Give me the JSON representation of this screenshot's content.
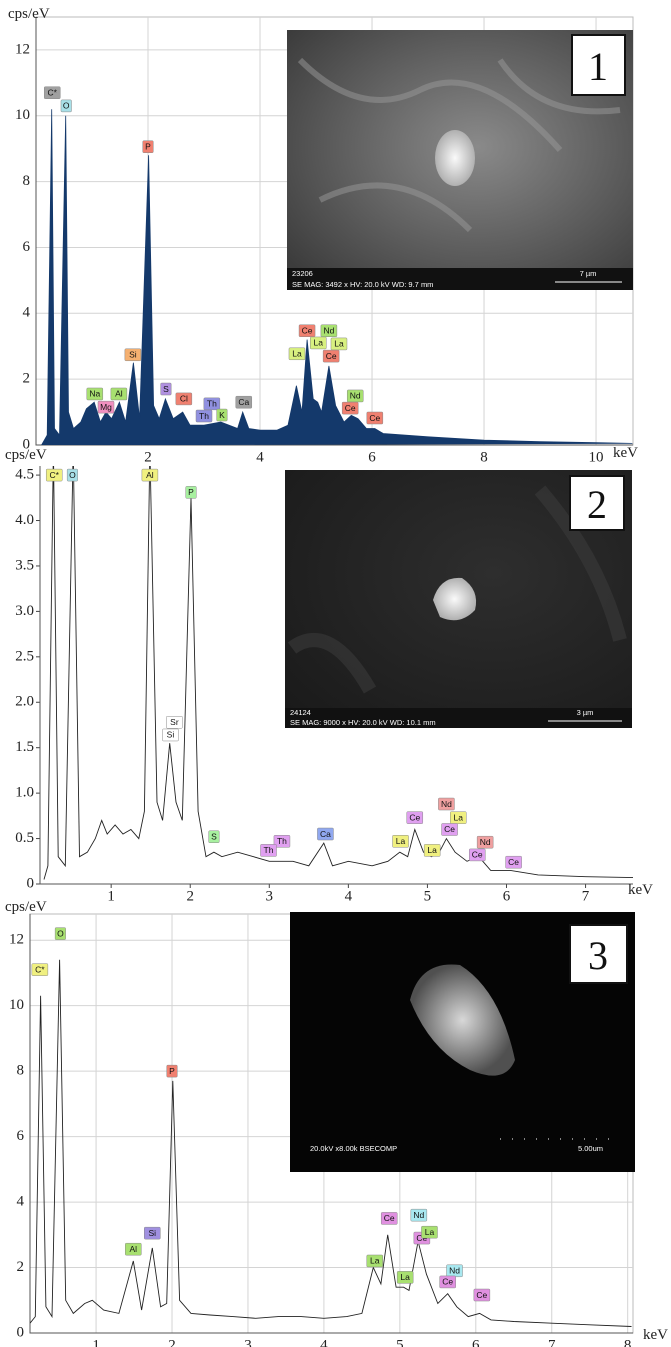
{
  "chart_data": [
    {
      "type": "area",
      "x_label": "keV",
      "y_label": "cps/eV",
      "color": "#14396b",
      "grid": true,
      "xlim": [
        0,
        10.66
      ],
      "ylim": [
        0,
        13
      ],
      "xticks": [
        2,
        4,
        6,
        8,
        10
      ],
      "yticks": [
        0,
        2,
        4,
        6,
        8,
        10,
        12
      ],
      "x": [
        0.1,
        0.2,
        0.28,
        0.33,
        0.42,
        0.53,
        0.58,
        0.67,
        0.8,
        0.9,
        1.04,
        1.15,
        1.25,
        1.35,
        1.49,
        1.6,
        1.74,
        1.85,
        2.01,
        2.1,
        2.2,
        2.31,
        2.45,
        2.62,
        2.75,
        3.0,
        3.3,
        3.6,
        3.69,
        3.8,
        4.0,
        4.3,
        4.5,
        4.65,
        4.75,
        4.84,
        4.95,
        5.03,
        5.1,
        5.23,
        5.35,
        5.5,
        5.63,
        5.75,
        5.9,
        6.05,
        6.2,
        6.6,
        7.0,
        8.0,
        9.0,
        10.0,
        10.65
      ],
      "values": [
        0,
        0.3,
        10.2,
        0.5,
        0.3,
        10,
        1,
        0.5,
        0.7,
        1.1,
        1.3,
        0.7,
        1.0,
        0.8,
        1.3,
        0.7,
        2.5,
        0.8,
        8.8,
        1.2,
        0.8,
        1.4,
        0.8,
        1.0,
        0.6,
        0.6,
        0.7,
        0.5,
        1.0,
        0.5,
        0.45,
        0.45,
        0.6,
        1.8,
        1.0,
        3.2,
        1.4,
        1.3,
        1.0,
        2.4,
        1.2,
        0.7,
        0.9,
        0.8,
        0.5,
        0.5,
        0.35,
        0.3,
        0.25,
        0.15,
        0.1,
        0.07,
        0.05
      ],
      "annotations": [
        {
          "text": "C*",
          "x": 0.29,
          "y": 10.7,
          "color": "#a0a0a0"
        },
        {
          "text": "O",
          "x": 0.54,
          "y": 10.3,
          "color": "#a8e0e8"
        },
        {
          "text": "P",
          "x": 2.0,
          "y": 9.06,
          "color": "#f08070"
        },
        {
          "text": "Si",
          "x": 1.73,
          "y": 2.74,
          "color": "#f5b070"
        },
        {
          "text": "Na",
          "x": 1.05,
          "y": 1.55,
          "color": "#a8e070"
        },
        {
          "text": "Mg",
          "x": 1.25,
          "y": 1.15,
          "color": "#f090c0"
        },
        {
          "text": "Al",
          "x": 1.48,
          "y": 1.55,
          "color": "#a8e070"
        },
        {
          "text": "S",
          "x": 2.32,
          "y": 1.7,
          "color": "#b090e0"
        },
        {
          "text": "Cl",
          "x": 2.64,
          "y": 1.4,
          "color": "#f08070"
        },
        {
          "text": "Th",
          "x": 3.14,
          "y": 1.25,
          "color": "#9090e0"
        },
        {
          "text": "Th",
          "x": 3.0,
          "y": 0.88,
          "color": "#9090e0"
        },
        {
          "text": "K",
          "x": 3.32,
          "y": 0.91,
          "color": "#a8e070"
        },
        {
          "text": "Ca",
          "x": 3.71,
          "y": 1.3,
          "color": "#a0a0a0"
        },
        {
          "text": "La",
          "x": 4.66,
          "y": 2.77,
          "color": "#d8f080"
        },
        {
          "text": "Ce",
          "x": 4.84,
          "y": 3.47,
          "color": "#f08070"
        },
        {
          "text": "La",
          "x": 5.04,
          "y": 3.1,
          "color": "#d8f080"
        },
        {
          "text": "Nd",
          "x": 5.23,
          "y": 3.47,
          "color": "#a8e070"
        },
        {
          "text": "La",
          "x": 5.41,
          "y": 3.07,
          "color": "#d8f080"
        },
        {
          "text": "Ce",
          "x": 5.27,
          "y": 2.7,
          "color": "#f08070"
        },
        {
          "text": "Nd",
          "x": 5.7,
          "y": 1.49,
          "color": "#a8e070"
        },
        {
          "text": "Ce",
          "x": 5.61,
          "y": 1.12,
          "color": "#f08070"
        },
        {
          "text": "Ce",
          "x": 6.05,
          "y": 0.82,
          "color": "#f08070"
        }
      ],
      "inset": {
        "label": "1",
        "image_id": "23206",
        "caption": "SE  MAG: 3492 x  HV: 20.0 kV  WD: 9.7 mm",
        "scale": "7 µm"
      }
    },
    {
      "type": "line",
      "x_label": "keV",
      "y_label": "cps/eV",
      "color": "#222222",
      "grid": false,
      "xlim": [
        0.1,
        7.6
      ],
      "ylim": [
        0,
        4.6
      ],
      "xticks": [
        1,
        2,
        3,
        4,
        5,
        6,
        7
      ],
      "yticks": [
        0,
        0.5,
        {
          "value": 1,
          "label": "1.0"
        },
        1.5,
        {
          "value": 2,
          "label": "2.0"
        },
        2.5,
        {
          "value": 3,
          "label": "3.0"
        },
        3.5,
        {
          "value": 4,
          "label": "4.0"
        },
        4.5
      ],
      "x": [
        0.15,
        0.2,
        0.27,
        0.33,
        0.42,
        0.52,
        0.6,
        0.7,
        0.8,
        0.88,
        0.95,
        1.05,
        1.15,
        1.25,
        1.35,
        1.42,
        1.49,
        1.58,
        1.65,
        1.74,
        1.82,
        1.9,
        2.01,
        2.1,
        2.2,
        2.3,
        2.4,
        2.6,
        2.8,
        3.0,
        3.3,
        3.5,
        3.69,
        3.8,
        4.0,
        4.3,
        4.5,
        4.65,
        4.75,
        4.84,
        4.95,
        5.05,
        5.15,
        5.24,
        5.35,
        5.5,
        5.65,
        5.8,
        6.05,
        6.4,
        7.0,
        7.6
      ],
      "values": [
        0.05,
        0.2,
        4.8,
        0.3,
        0.2,
        4.8,
        0.3,
        0.35,
        0.5,
        0.7,
        0.55,
        0.65,
        0.55,
        0.6,
        0.5,
        0.8,
        4.8,
        0.9,
        0.7,
        1.55,
        0.9,
        0.7,
        4.25,
        0.8,
        0.3,
        0.35,
        0.3,
        0.35,
        0.3,
        0.25,
        0.25,
        0.2,
        0.45,
        0.2,
        0.25,
        0.2,
        0.25,
        0.35,
        0.3,
        0.6,
        0.35,
        0.3,
        0.35,
        0.5,
        0.35,
        0.25,
        0.3,
        0.15,
        0.15,
        0.1,
        0.08,
        0.07
      ],
      "annotations": [
        {
          "text": "C*",
          "x": 0.28,
          "y": 4.5,
          "color": "#f0f080"
        },
        {
          "text": "O",
          "x": 0.51,
          "y": 4.5,
          "color": "#a8e0e8"
        },
        {
          "text": "Al",
          "x": 1.49,
          "y": 4.5,
          "color": "#f0f080"
        },
        {
          "text": "P",
          "x": 2.01,
          "y": 4.31,
          "color": "#a8f0a0"
        },
        {
          "text": "Sr",
          "x": 1.8,
          "y": 1.78,
          "color": "#ffffff"
        },
        {
          "text": "Si",
          "x": 1.75,
          "y": 1.64,
          "color": "#ffffff"
        },
        {
          "text": "S",
          "x": 2.3,
          "y": 0.52,
          "color": "#a8f0a0"
        },
        {
          "text": "Th",
          "x": 3.16,
          "y": 0.47,
          "color": "#e0a0f0"
        },
        {
          "text": "Th",
          "x": 2.99,
          "y": 0.37,
          "color": "#e0a0f0"
        },
        {
          "text": "Ca",
          "x": 3.71,
          "y": 0.55,
          "color": "#90a8f0"
        },
        {
          "text": "La",
          "x": 4.66,
          "y": 0.47,
          "color": "#f0f080"
        },
        {
          "text": "Ce",
          "x": 4.84,
          "y": 0.73,
          "color": "#e0a0f0"
        },
        {
          "text": "La",
          "x": 5.06,
          "y": 0.37,
          "color": "#f0f080"
        },
        {
          "text": "Nd",
          "x": 5.24,
          "y": 0.88,
          "color": "#f0a0a0"
        },
        {
          "text": "La",
          "x": 5.39,
          "y": 0.73,
          "color": "#f0f080"
        },
        {
          "text": "Ce",
          "x": 5.28,
          "y": 0.6,
          "color": "#e0a0f0"
        },
        {
          "text": "Nd",
          "x": 5.73,
          "y": 0.46,
          "color": "#f0a0a0"
        },
        {
          "text": "Ce",
          "x": 5.63,
          "y": 0.32,
          "color": "#e0a0f0"
        },
        {
          "text": "Ce",
          "x": 6.09,
          "y": 0.24,
          "color": "#e0a0f0"
        }
      ],
      "inset": {
        "label": "2",
        "image_id": "24124",
        "caption": "SE  MAG: 9000 x  HV: 20.0 kV  WD: 10.1 mm",
        "scale": "3 µm"
      }
    },
    {
      "type": "line",
      "x_label": "keV",
      "y_label": "cps/eV",
      "color": "#222222",
      "grid": true,
      "xlim": [
        0.13,
        8.07
      ],
      "ylim": [
        0,
        12.8
      ],
      "xticks": [
        1,
        2,
        3,
        4,
        5,
        6,
        7,
        8
      ],
      "yticks": [
        0,
        2,
        4,
        6,
        8,
        10,
        12
      ],
      "x": [
        0.13,
        0.2,
        0.27,
        0.34,
        0.42,
        0.52,
        0.6,
        0.7,
        0.85,
        0.95,
        1.1,
        1.3,
        1.49,
        1.6,
        1.74,
        1.85,
        1.93,
        2.01,
        2.1,
        2.25,
        2.5,
        2.8,
        3.1,
        3.4,
        3.7,
        4.0,
        4.3,
        4.5,
        4.65,
        4.75,
        4.84,
        4.95,
        5.05,
        5.12,
        5.24,
        5.35,
        5.5,
        5.63,
        5.75,
        5.9,
        6.05,
        6.2,
        6.5,
        7.0,
        7.5,
        8.05
      ],
      "values": [
        0.3,
        0.5,
        10.3,
        0.8,
        0.5,
        11.4,
        1.0,
        0.6,
        0.9,
        1.0,
        0.7,
        0.6,
        2.2,
        0.7,
        2.6,
        0.8,
        0.9,
        7.7,
        1.0,
        0.6,
        0.55,
        0.5,
        0.45,
        0.5,
        0.5,
        0.45,
        0.5,
        0.6,
        2.0,
        1.5,
        3.0,
        1.4,
        1.4,
        1.3,
        2.8,
        1.8,
        0.9,
        1.2,
        0.8,
        0.5,
        0.6,
        0.4,
        0.35,
        0.3,
        0.25,
        0.2
      ],
      "annotations": [
        {
          "text": "C*",
          "x": 0.26,
          "y": 11.1,
          "color": "#f0f080"
        },
        {
          "text": "O",
          "x": 0.53,
          "y": 12.2,
          "color": "#a8e070"
        },
        {
          "text": "P",
          "x": 2.0,
          "y": 8.0,
          "color": "#f08070"
        },
        {
          "text": "Al",
          "x": 1.49,
          "y": 2.56,
          "color": "#a8e070"
        },
        {
          "text": "Si",
          "x": 1.74,
          "y": 3.05,
          "color": "#a090e0"
        },
        {
          "text": "La",
          "x": 4.67,
          "y": 2.2,
          "color": "#a8e070"
        },
        {
          "text": "Ce",
          "x": 4.86,
          "y": 3.5,
          "color": "#e090e0"
        },
        {
          "text": "La",
          "x": 5.07,
          "y": 1.7,
          "color": "#a8e070"
        },
        {
          "text": "Nd",
          "x": 5.25,
          "y": 3.6,
          "color": "#a8e8f0"
        },
        {
          "text": "Ce",
          "x": 5.29,
          "y": 2.9,
          "color": "#e090e0"
        },
        {
          "text": "La",
          "x": 5.39,
          "y": 3.08,
          "color": "#a8e070"
        },
        {
          "text": "Nd",
          "x": 5.72,
          "y": 1.9,
          "color": "#a8e8f0"
        },
        {
          "text": "Ce",
          "x": 5.63,
          "y": 1.56,
          "color": "#e090e0"
        },
        {
          "text": "Ce",
          "x": 6.08,
          "y": 1.16,
          "color": "#e090e0"
        }
      ],
      "inset": {
        "label": "3",
        "caption": "20.0kV x8.00k BSECOMP",
        "scale": "5.00um"
      }
    }
  ]
}
